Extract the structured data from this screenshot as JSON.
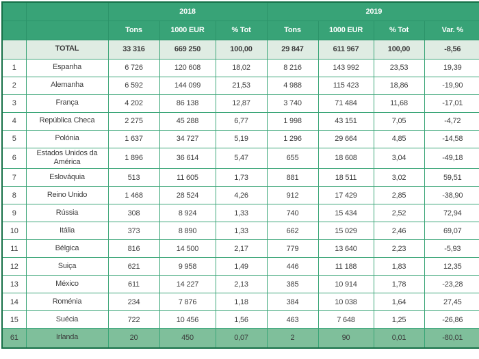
{
  "table": {
    "colors": {
      "header_green": "#38a377",
      "header_divider": "#2c946a",
      "border_green": "#3aa577",
      "outer_border": "#156f46",
      "light_green_row": "#dfece3",
      "highlight_row_green": "#7fbf9b",
      "text_dark": "#3c3c3c"
    },
    "year_groups": [
      {
        "label": "2018"
      },
      {
        "label": "2019"
      }
    ],
    "column_headers": [
      "Tons",
      "1000 EUR",
      "% Tot",
      "Tons",
      "1000 EUR",
      "% Tot",
      "Var. %"
    ],
    "total_row": {
      "rank": "",
      "country": "TOTAL",
      "values": [
        "33 316",
        "669 250",
        "100,00",
        "29 847",
        "611 967",
        "100,00",
        "-8,56"
      ]
    },
    "rows": [
      {
        "rank": "1",
        "country": "Espanha",
        "values": [
          "6 726",
          "120 608",
          "18,02",
          "8 216",
          "143 992",
          "23,53",
          "19,39"
        ]
      },
      {
        "rank": "2",
        "country": "Alemanha",
        "values": [
          "6 592",
          "144 099",
          "21,53",
          "4 988",
          "115 423",
          "18,86",
          "-19,90"
        ]
      },
      {
        "rank": "3",
        "country": "França",
        "values": [
          "4 202",
          "86 138",
          "12,87",
          "3 740",
          "71 484",
          "11,68",
          "-17,01"
        ]
      },
      {
        "rank": "4",
        "country": "República Checa",
        "values": [
          "2 275",
          "45 288",
          "6,77",
          "1 998",
          "43 151",
          "7,05",
          "-4,72"
        ]
      },
      {
        "rank": "5",
        "country": "Polónia",
        "values": [
          "1 637",
          "34 727",
          "5,19",
          "1 296",
          "29 664",
          "4,85",
          "-14,58"
        ]
      },
      {
        "rank": "6",
        "country": "Estados Unidos da América",
        "values": [
          "1 896",
          "36 614",
          "5,47",
          "655",
          "18 608",
          "3,04",
          "-49,18"
        ]
      },
      {
        "rank": "7",
        "country": "Eslováquia",
        "values": [
          "513",
          "11 605",
          "1,73",
          "881",
          "18 511",
          "3,02",
          "59,51"
        ]
      },
      {
        "rank": "8",
        "country": "Reino Unido",
        "values": [
          "1 468",
          "28 524",
          "4,26",
          "912",
          "17 429",
          "2,85",
          "-38,90"
        ]
      },
      {
        "rank": "9",
        "country": "Rússia",
        "values": [
          "308",
          "8 924",
          "1,33",
          "740",
          "15 434",
          "2,52",
          "72,94"
        ]
      },
      {
        "rank": "10",
        "country": "Itália",
        "values": [
          "373",
          "8 890",
          "1,33",
          "662",
          "15 029",
          "2,46",
          "69,07"
        ]
      },
      {
        "rank": "11",
        "country": "Bélgica",
        "values": [
          "816",
          "14 500",
          "2,17",
          "779",
          "13 640",
          "2,23",
          "-5,93"
        ]
      },
      {
        "rank": "12",
        "country": "Suiça",
        "values": [
          "621",
          "9 958",
          "1,49",
          "446",
          "11 188",
          "1,83",
          "12,35"
        ]
      },
      {
        "rank": "13",
        "country": "México",
        "values": [
          "611",
          "14 227",
          "2,13",
          "385",
          "10 914",
          "1,78",
          "-23,28"
        ]
      },
      {
        "rank": "14",
        "country": "Roménia",
        "values": [
          "234",
          "7 876",
          "1,18",
          "384",
          "10 038",
          "1,64",
          "27,45"
        ]
      },
      {
        "rank": "15",
        "country": "Suécia",
        "values": [
          "722",
          "10 456",
          "1,56",
          "463",
          "7 648",
          "1,25",
          "-26,86"
        ]
      }
    ],
    "highlight_row": {
      "rank": "61",
      "country": "Irlanda",
      "values": [
        "20",
        "450",
        "0,07",
        "2",
        "90",
        "0,01",
        "-80,01"
      ]
    }
  }
}
